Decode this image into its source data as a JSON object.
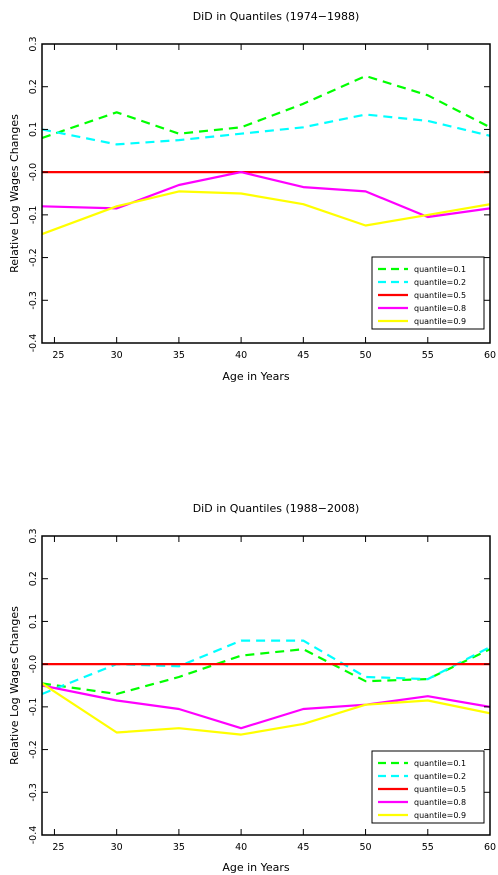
{
  "chart_data": [
    {
      "type": "line",
      "title": "DiD in Quantiles (1974−1988)",
      "xlabel": "Age in Years",
      "ylabel": "Relative Log Wages Changes",
      "xlim": [
        24,
        60
      ],
      "ylim": [
        -0.4,
        0.3
      ],
      "xticks": [
        "25",
        "30",
        "35",
        "40",
        "45",
        "50",
        "55",
        "60"
      ],
      "yticks": [
        "-0.4",
        "-0.3",
        "-0.2",
        "-0.1",
        "-0.0",
        "0.1",
        "0.2",
        "0.3"
      ],
      "grid": false,
      "legend_position": "bottom-right",
      "x": [
        24,
        30,
        35,
        40,
        45,
        50,
        55,
        60
      ],
      "series": [
        {
          "name": "quantile=0.1",
          "color": "#00ff00",
          "dash": true,
          "values": [
            0.08,
            0.14,
            0.09,
            0.105,
            0.16,
            0.225,
            0.18,
            0.105
          ]
        },
        {
          "name": "quantile=0.2",
          "color": "#00ffff",
          "dash": true,
          "values": [
            0.1,
            0.065,
            0.075,
            0.09,
            0.105,
            0.135,
            0.12,
            0.085
          ]
        },
        {
          "name": "quantile=0.5",
          "color": "#ff0000",
          "dash": false,
          "values": [
            0,
            0,
            0,
            0,
            0,
            0,
            0,
            0
          ]
        },
        {
          "name": "quantile=0.8",
          "color": "#ff00ff",
          "dash": false,
          "values": [
            -0.08,
            -0.085,
            -0.03,
            0.0,
            -0.035,
            -0.045,
            -0.105,
            -0.085
          ]
        },
        {
          "name": "quantile=0.9",
          "color": "#ffff00",
          "dash": false,
          "values": [
            -0.145,
            -0.08,
            -0.045,
            -0.05,
            -0.075,
            -0.125,
            -0.1,
            -0.075
          ]
        }
      ]
    },
    {
      "type": "line",
      "title": "DiD in Quantiles (1988−2008)",
      "xlabel": "Age in Years",
      "ylabel": "Relative Log Wages Changes",
      "xlim": [
        24,
        60
      ],
      "ylim": [
        -0.4,
        0.3
      ],
      "xticks": [
        "25",
        "30",
        "35",
        "40",
        "45",
        "50",
        "55",
        "60"
      ],
      "yticks": [
        "-0.4",
        "-0.3",
        "-0.2",
        "-0.1",
        "-0.0",
        "0.1",
        "0.2",
        "0.3"
      ],
      "grid": false,
      "legend_position": "bottom-right",
      "x": [
        24,
        30,
        35,
        40,
        45,
        50,
        55,
        60
      ],
      "series": [
        {
          "name": "quantile=0.1",
          "color": "#00ff00",
          "dash": true,
          "values": [
            -0.045,
            -0.07,
            -0.03,
            0.02,
            0.035,
            -0.04,
            -0.035,
            0.035
          ]
        },
        {
          "name": "quantile=0.2",
          "color": "#00ffff",
          "dash": true,
          "values": [
            -0.07,
            0.0,
            -0.005,
            0.055,
            0.055,
            -0.03,
            -0.035,
            0.04
          ]
        },
        {
          "name": "quantile=0.5",
          "color": "#ff0000",
          "dash": false,
          "values": [
            0,
            0,
            0,
            0,
            0,
            0,
            0,
            0
          ]
        },
        {
          "name": "quantile=0.8",
          "color": "#ff00ff",
          "dash": false,
          "values": [
            -0.05,
            -0.085,
            -0.105,
            -0.15,
            -0.105,
            -0.095,
            -0.075,
            -0.1
          ]
        },
        {
          "name": "quantile=0.9",
          "color": "#ffff00",
          "dash": false,
          "values": [
            -0.045,
            -0.16,
            -0.15,
            -0.165,
            -0.14,
            -0.095,
            -0.085,
            -0.115
          ]
        }
      ]
    }
  ]
}
